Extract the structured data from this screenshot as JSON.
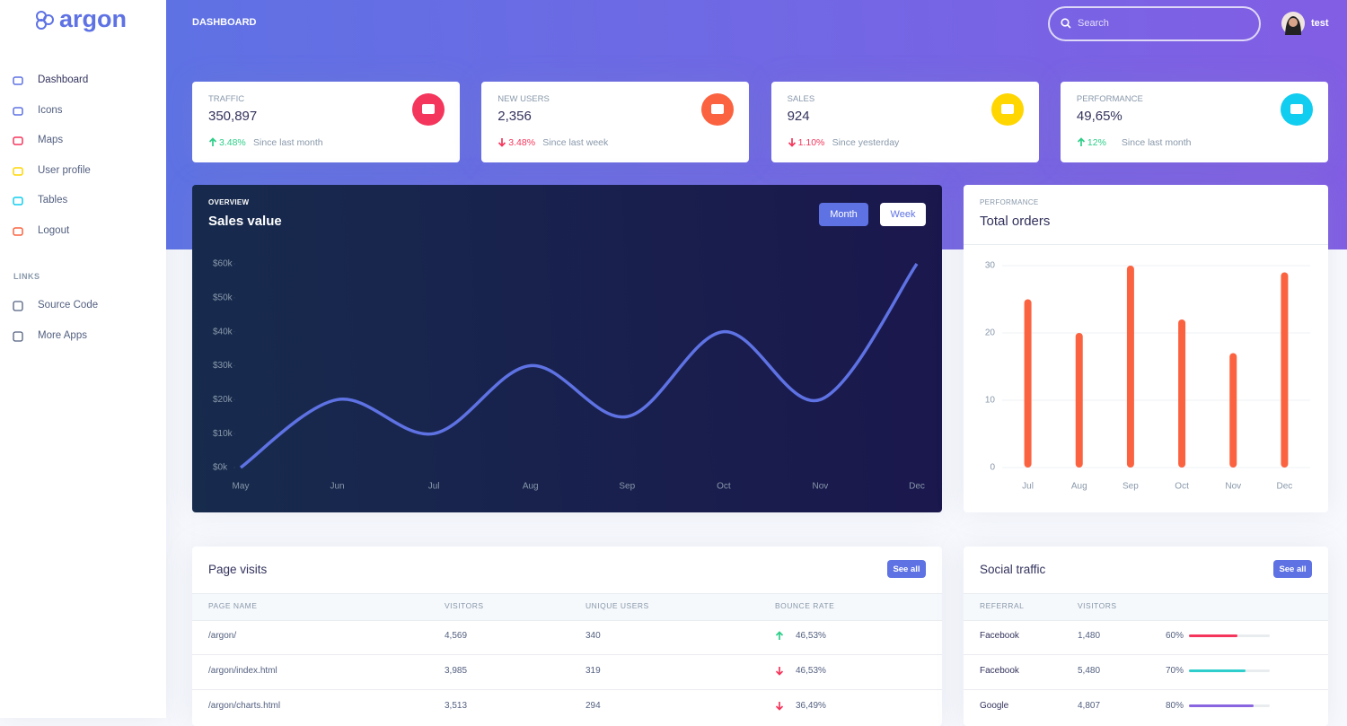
{
  "brand": "argon",
  "sidebar": {
    "nav": [
      "Dashboard",
      "Icons",
      "Maps",
      "User profile",
      "Tables",
      "Logout"
    ],
    "links_heading": "LINKS",
    "links": [
      "Source Code",
      "More Apps"
    ]
  },
  "header": {
    "title": "DASHBOARD",
    "search_placeholder": "Search",
    "user": "test"
  },
  "stats": [
    {
      "label": "TRAFFIC",
      "value": "350,897",
      "change": "3.48%",
      "trend": "up",
      "note": "Since last month"
    },
    {
      "label": "NEW USERS",
      "value": "2,356",
      "change": "3.48%",
      "trend": "down",
      "note": "Since last week"
    },
    {
      "label": "SALES",
      "value": "924",
      "change": "1.10%",
      "trend": "down",
      "note": "Since yesterday"
    },
    {
      "label": "PERFORMANCE",
      "value": "49,65%",
      "change": "12%",
      "trend": "up",
      "note": "Since last month"
    }
  ],
  "chart_data": [
    {
      "type": "line",
      "subtitle": "OVERVIEW",
      "title": "Sales value",
      "buttons": [
        "Month",
        "Week"
      ],
      "categories": [
        "May",
        "Jun",
        "Jul",
        "Aug",
        "Sep",
        "Oct",
        "Nov",
        "Dec"
      ],
      "values": [
        0,
        20,
        10,
        30,
        15,
        40,
        20,
        60
      ],
      "color": "#5e72e4",
      "ylim": [
        0,
        60
      ],
      "yticks": [
        {
          "value": 0,
          "label": "$0k"
        },
        {
          "value": 10,
          "label": "$10k"
        },
        {
          "value": 20,
          "label": "$20k"
        },
        {
          "value": 30,
          "label": "$30k"
        },
        {
          "value": 40,
          "label": "$40k"
        },
        {
          "value": 50,
          "label": "$50k"
        },
        {
          "value": 60,
          "label": "$60k"
        }
      ]
    },
    {
      "type": "bar",
      "subtitle": "PERFORMANCE",
      "title": "Total orders",
      "categories": [
        "Jul",
        "Aug",
        "Sep",
        "Oct",
        "Nov",
        "Dec"
      ],
      "values": [
        25,
        20,
        30,
        22,
        17,
        29
      ],
      "color": "#fb6340",
      "ylim": [
        0,
        30
      ],
      "yticks": [
        0,
        10,
        20,
        30
      ],
      "grid": true
    }
  ],
  "tables": [
    {
      "title": "Page visits",
      "action": "See all",
      "columns": [
        "PAGE NAME",
        "VISITORS",
        "UNIQUE USERS",
        "BOUNCE RATE"
      ],
      "rows": [
        {
          "page": "/argon/",
          "visitors": "4,569",
          "unique": "340",
          "bounce": "46,53%",
          "trend": "up"
        },
        {
          "page": "/argon/index.html",
          "visitors": "3,985",
          "unique": "319",
          "bounce": "46,53%",
          "trend": "down"
        },
        {
          "page": "/argon/charts.html",
          "visitors": "3,513",
          "unique": "294",
          "bounce": "36,49%",
          "trend": "down"
        }
      ]
    },
    {
      "title": "Social traffic",
      "action": "See all",
      "columns": [
        "REFERRAL",
        "VISITORS"
      ],
      "rows": [
        {
          "referral": "Facebook",
          "visitors": "1,480",
          "percent": 60,
          "percent_label": "60%",
          "color": "#f5365c"
        },
        {
          "referral": "Facebook",
          "visitors": "5,480",
          "percent": 70,
          "percent_label": "70%",
          "color": "#2dcecc"
        },
        {
          "referral": "Google",
          "visitors": "4,807",
          "percent": 80,
          "percent_label": "80%",
          "color": "#8965e0"
        }
      ]
    }
  ]
}
